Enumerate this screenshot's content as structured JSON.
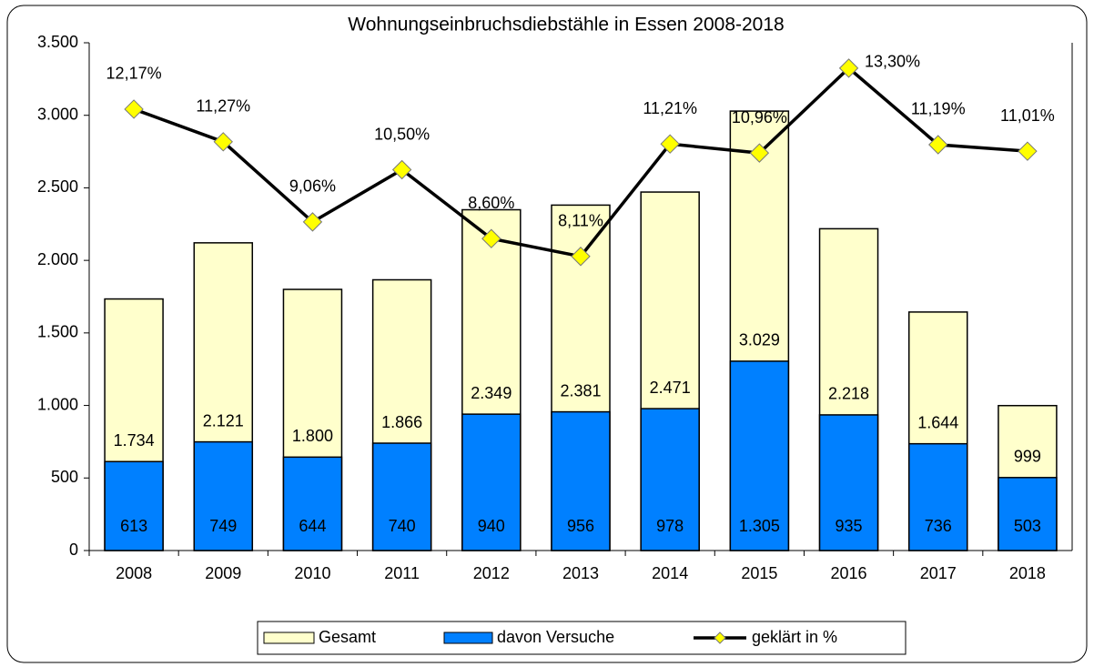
{
  "chart_data": {
    "type": "bar",
    "title": "Wohnungseinbruchsdiebstähle in Essen 2008-2018",
    "categories": [
      "2008",
      "2009",
      "2010",
      "2011",
      "2012",
      "2013",
      "2014",
      "2015",
      "2016",
      "2017",
      "2018"
    ],
    "series": [
      {
        "name": "Gesamt",
        "type": "bar",
        "color": "#ffffcc",
        "values": [
          1734,
          2121,
          1800,
          1866,
          2349,
          2381,
          2471,
          3029,
          2218,
          1644,
          999
        ],
        "value_labels": [
          "1.734",
          "2.121",
          "1.800",
          "1.866",
          "2.349",
          "2.381",
          "2.471",
          "3.029",
          "2.218",
          "1.644",
          "999"
        ]
      },
      {
        "name": "davon Versuche",
        "type": "bar",
        "color": "#0080ff",
        "values": [
          613,
          749,
          644,
          740,
          940,
          956,
          978,
          1305,
          935,
          736,
          503
        ],
        "value_labels": [
          "613",
          "749",
          "644",
          "740",
          "940",
          "956",
          "978",
          "1.305",
          "935",
          "736",
          "503"
        ]
      },
      {
        "name": "geklärt in %",
        "type": "line",
        "axis": "y2",
        "color": "#000000",
        "marker_color": "#ffff00",
        "values": [
          12.17,
          11.27,
          9.06,
          10.5,
          8.6,
          8.11,
          11.21,
          10.96,
          13.3,
          11.19,
          11.01
        ],
        "value_labels": [
          "12,17%",
          "11,27%",
          "9,06%",
          "10,50%",
          "8,60%",
          "8,11%",
          "11,21%",
          "10,96%",
          "13,30%",
          "11,19%",
          "11,01%"
        ]
      }
    ],
    "ylim": [
      0,
      3500
    ],
    "yticks": [
      0,
      500,
      {
        "value": 1000,
        "label": "1.000"
      },
      {
        "value": 1500,
        "label": "1.500"
      },
      {
        "value": 2000,
        "label": "2.000"
      },
      {
        "value": 2500,
        "label": "2.500"
      },
      {
        "value": 3000,
        "label": "3.000"
      },
      {
        "value": 3500,
        "label": "3.500"
      }
    ],
    "y2lim": [
      0,
      14
    ],
    "grid": false
  }
}
